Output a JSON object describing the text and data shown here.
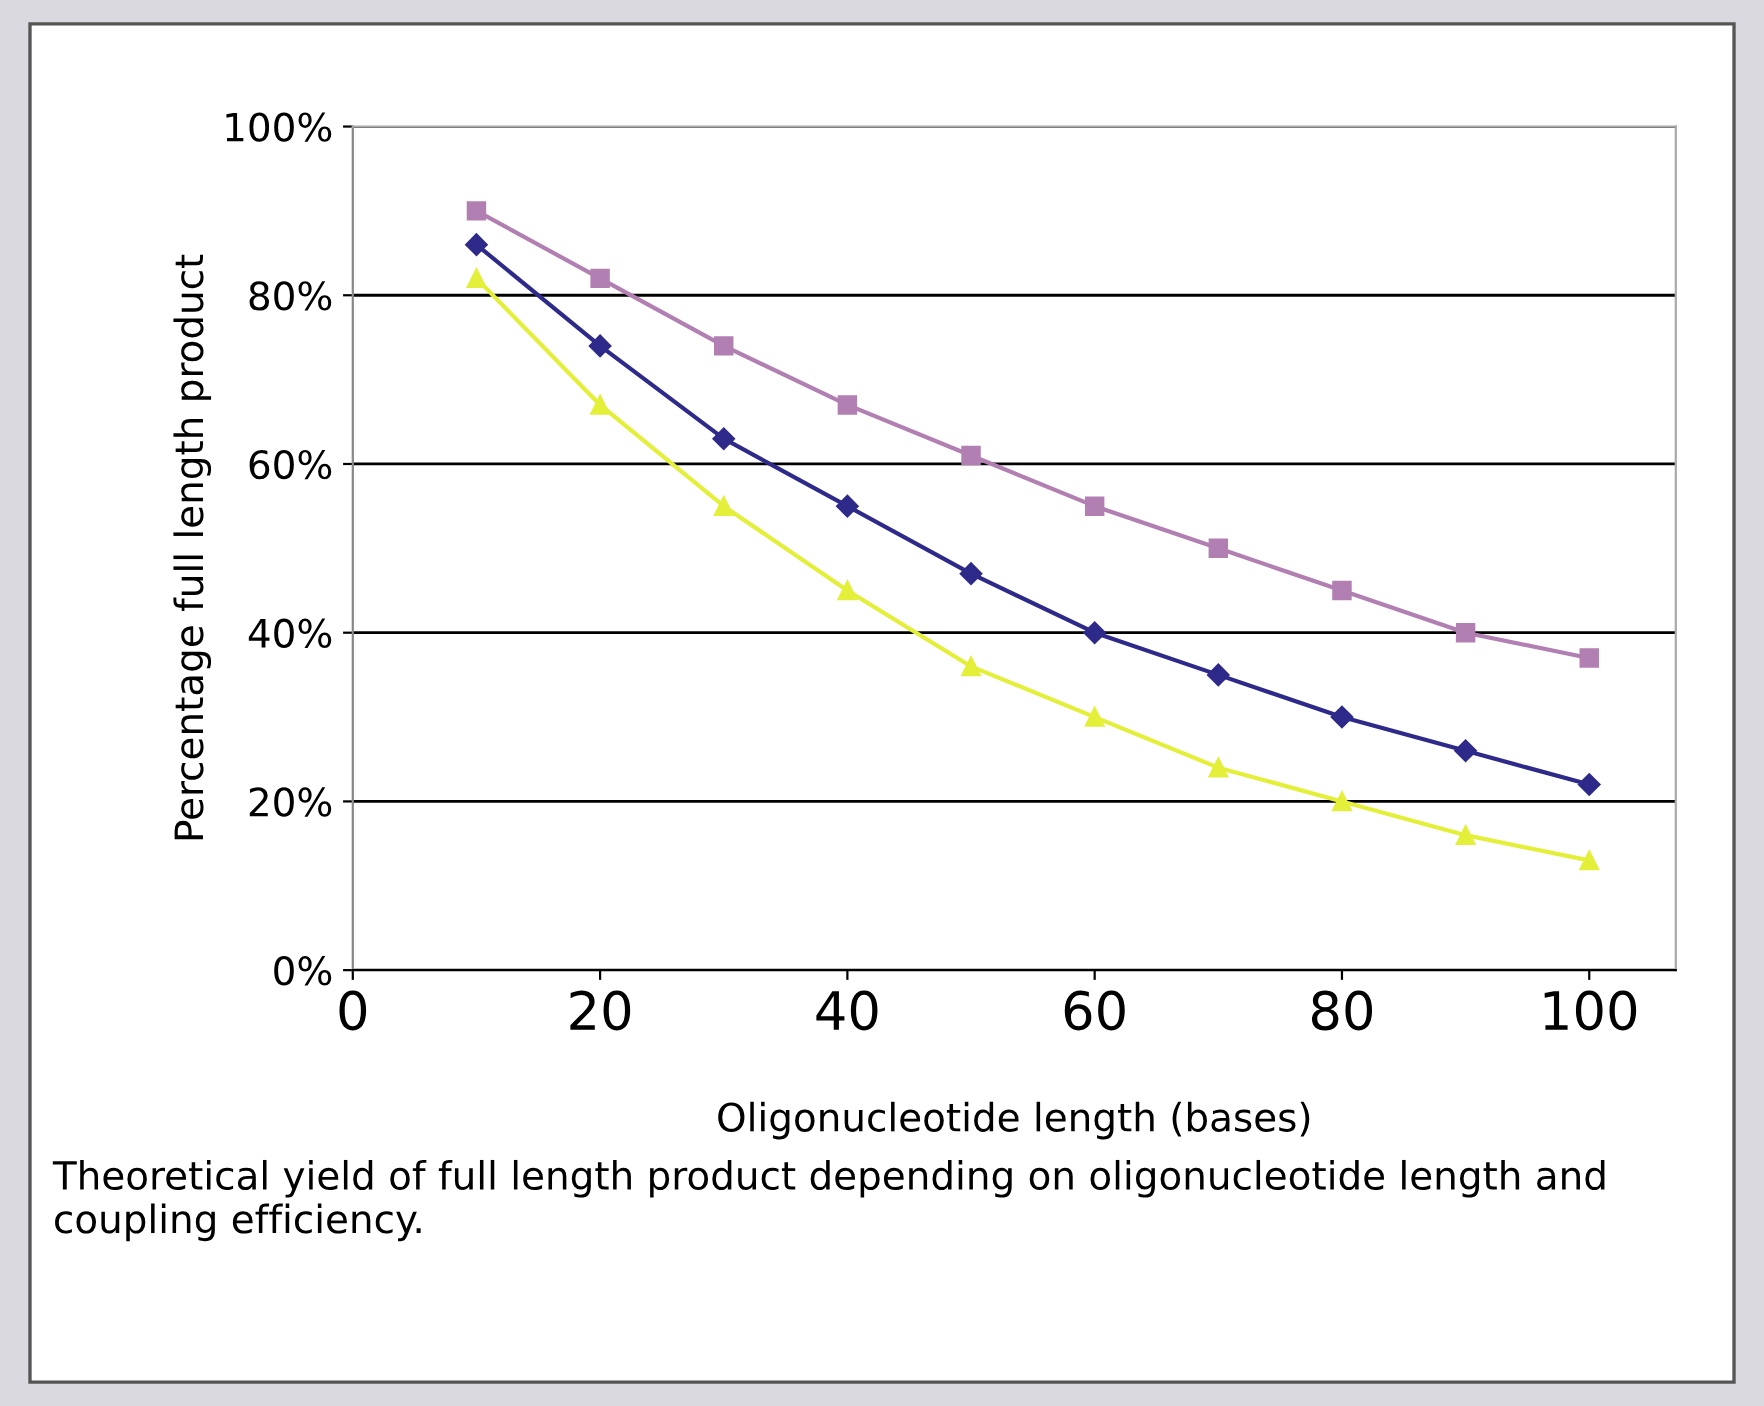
{
  "chart_data": {
    "type": "line",
    "xlabel": "Oligonucleotide length (bases)",
    "ylabel": "Percentage full length product",
    "x": [
      10,
      20,
      30,
      40,
      50,
      60,
      70,
      80,
      90,
      100
    ],
    "series": [
      {
        "color": "#b27fb2",
        "marker": "square",
        "values": [
          90,
          82,
          74,
          67,
          61,
          55,
          50,
          45,
          40,
          37
        ]
      },
      {
        "color": "#2e2a8a",
        "marker": "diamond",
        "values": [
          86,
          74,
          63,
          55,
          47,
          40,
          35,
          30,
          26,
          22
        ]
      },
      {
        "color": "#e4ef3a",
        "marker": "triangle",
        "values": [
          82,
          67,
          55,
          45,
          36,
          30,
          24,
          20,
          16,
          13
        ]
      }
    ],
    "xlim": [
      0,
      107
    ],
    "xticks": [
      0,
      20,
      40,
      60,
      80,
      100
    ],
    "ylim": [
      0,
      100
    ],
    "yticks": [
      {
        "value": 0,
        "label": "0%"
      },
      {
        "value": 20,
        "label": "20%"
      },
      {
        "value": 40,
        "label": "40%"
      },
      {
        "value": 60,
        "label": "60%"
      },
      {
        "value": 80,
        "label": "80%"
      },
      {
        "value": 100,
        "label": "100%"
      }
    ],
    "grid": "y",
    "line_style": "solid",
    "annotations": [
      "Theoretical yield of full length product depending on oligonucleotide length and coupling efficiency."
    ]
  }
}
